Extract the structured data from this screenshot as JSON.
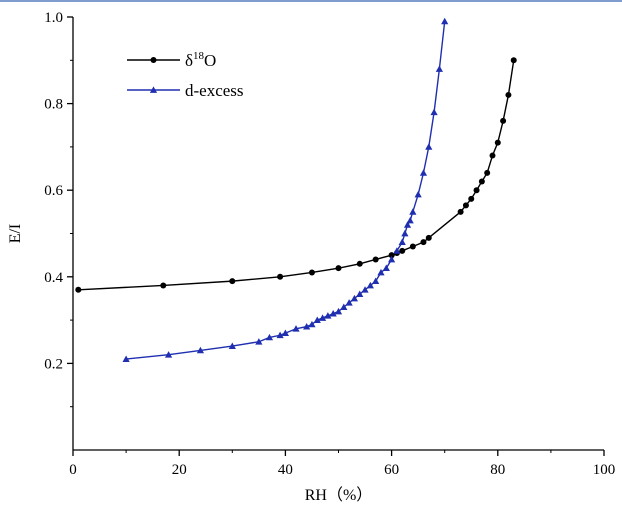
{
  "chart_data": {
    "type": "line",
    "title": "",
    "xlabel": "RH（%）",
    "ylabel": "E/I",
    "xlim": [
      0,
      100
    ],
    "ylim": [
      0.0,
      1.0
    ],
    "xticks": [
      0,
      20,
      40,
      60,
      80,
      100
    ],
    "yticks": [
      0.2,
      0.4,
      0.6,
      0.8,
      1.0
    ],
    "xtick_labels": [
      "0",
      "20",
      "40",
      "60",
      "80",
      "100"
    ],
    "ytick_labels": [
      "0.2",
      "0.4",
      "0.6",
      "0.8",
      "1.0"
    ],
    "grid": false,
    "legend_position": "top-left",
    "series": [
      {
        "name": "δ18O",
        "name_base": "δ",
        "name_sup": "18",
        "name_tail": "O",
        "color": "#000000",
        "marker": "circle",
        "x": [
          1,
          17,
          30,
          39,
          45,
          50,
          54,
          57,
          60,
          61,
          62,
          64,
          66,
          67,
          73,
          74,
          75,
          76,
          77,
          78,
          79,
          80,
          81,
          82,
          83
        ],
        "y": [
          0.37,
          0.38,
          0.39,
          0.4,
          0.41,
          0.42,
          0.43,
          0.44,
          0.45,
          0.455,
          0.46,
          0.47,
          0.48,
          0.49,
          0.55,
          0.565,
          0.58,
          0.6,
          0.62,
          0.64,
          0.68,
          0.71,
          0.76,
          0.82,
          0.9
        ]
      },
      {
        "name": "d-excess",
        "color": "#1f2fb0",
        "marker": "triangle",
        "x": [
          10,
          18,
          24,
          30,
          35,
          37,
          39,
          40,
          42,
          44,
          45,
          46,
          47,
          48,
          49,
          50,
          51,
          52,
          53,
          54,
          55,
          56,
          57,
          58,
          59,
          60,
          61,
          62,
          62.5,
          63,
          63.5,
          64,
          65,
          66,
          67,
          68,
          69,
          70
        ],
        "y": [
          0.21,
          0.22,
          0.23,
          0.24,
          0.25,
          0.26,
          0.265,
          0.27,
          0.28,
          0.285,
          0.29,
          0.3,
          0.305,
          0.31,
          0.315,
          0.32,
          0.33,
          0.34,
          0.35,
          0.36,
          0.37,
          0.38,
          0.39,
          0.41,
          0.42,
          0.44,
          0.46,
          0.48,
          0.5,
          0.52,
          0.53,
          0.55,
          0.59,
          0.64,
          0.7,
          0.78,
          0.88,
          0.99
        ]
      }
    ]
  }
}
